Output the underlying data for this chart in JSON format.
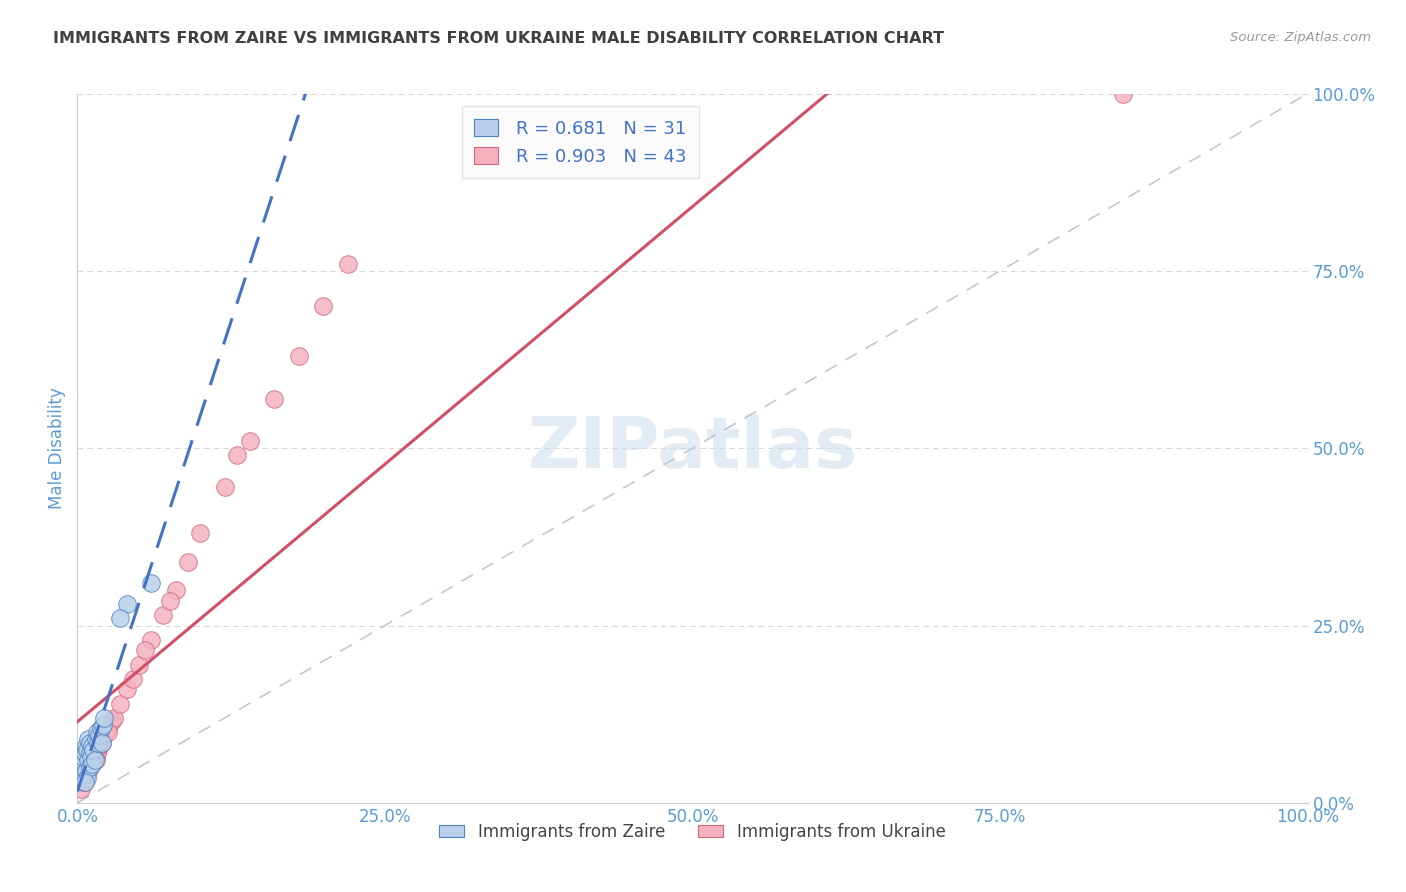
{
  "title": "IMMIGRANTS FROM ZAIRE VS IMMIGRANTS FROM UKRAINE MALE DISABILITY CORRELATION CHART",
  "source": "Source: ZipAtlas.com",
  "ylabel": "Male Disability",
  "xlim": [
    0,
    1.0
  ],
  "ylim": [
    0,
    1.0
  ],
  "xtick_labels": [
    "0.0%",
    "25.0%",
    "50.0%",
    "75.0%",
    "100.0%"
  ],
  "xtick_vals": [
    0.0,
    0.25,
    0.5,
    0.75,
    1.0
  ],
  "ytick_labels": [
    "0.0%",
    "25.0%",
    "50.0%",
    "75.0%",
    "100.0%"
  ],
  "ytick_vals": [
    0.0,
    0.25,
    0.5,
    0.75,
    1.0
  ],
  "zaire_face_color": "#b8d0ea",
  "ukraine_face_color": "#f5b0c0",
  "zaire_edge_color": "#5080c0",
  "ukraine_edge_color": "#d06878",
  "zaire_line_color": "#4472C4",
  "ukraine_line_color": "#d05068",
  "diagonal_color": "#c0c8d0",
  "R_zaire": 0.681,
  "N_zaire": 31,
  "R_ukraine": 0.903,
  "N_ukraine": 43,
  "watermark": "ZIPatlas",
  "background_color": "#ffffff",
  "title_color": "#404040",
  "axis_label_color": "#5b9bd5",
  "tick_color": "#5b9bd5",
  "rn_color": "#4472C4",
  "zaire_scatter_x": [
    0.003,
    0.004,
    0.005,
    0.005,
    0.006,
    0.007,
    0.007,
    0.008,
    0.008,
    0.009,
    0.009,
    0.01,
    0.01,
    0.01,
    0.011,
    0.012,
    0.012,
    0.013,
    0.014,
    0.015,
    0.016,
    0.017,
    0.018,
    0.019,
    0.02,
    0.021,
    0.022,
    0.006,
    0.04,
    0.06,
    0.035
  ],
  "zaire_scatter_y": [
    0.06,
    0.055,
    0.065,
    0.04,
    0.07,
    0.045,
    0.08,
    0.035,
    0.075,
    0.06,
    0.09,
    0.05,
    0.07,
    0.085,
    0.065,
    0.055,
    0.08,
    0.075,
    0.06,
    0.09,
    0.1,
    0.085,
    0.095,
    0.105,
    0.085,
    0.11,
    0.12,
    0.03,
    0.28,
    0.31,
    0.26
  ],
  "ukraine_scatter_x": [
    0.003,
    0.005,
    0.006,
    0.007,
    0.008,
    0.009,
    0.01,
    0.011,
    0.012,
    0.013,
    0.014,
    0.015,
    0.016,
    0.017,
    0.018,
    0.02,
    0.022,
    0.025,
    0.028,
    0.03,
    0.035,
    0.04,
    0.045,
    0.05,
    0.06,
    0.07,
    0.08,
    0.09,
    0.1,
    0.12,
    0.14,
    0.16,
    0.18,
    0.2,
    0.22,
    0.006,
    0.008,
    0.015,
    0.025,
    0.055,
    0.075,
    0.13,
    0.85
  ],
  "ukraine_scatter_y": [
    0.02,
    0.03,
    0.035,
    0.04,
    0.045,
    0.045,
    0.05,
    0.055,
    0.055,
    0.06,
    0.065,
    0.065,
    0.07,
    0.075,
    0.08,
    0.085,
    0.095,
    0.105,
    0.115,
    0.12,
    0.14,
    0.16,
    0.175,
    0.195,
    0.23,
    0.265,
    0.3,
    0.34,
    0.38,
    0.445,
    0.51,
    0.57,
    0.63,
    0.7,
    0.76,
    0.03,
    0.04,
    0.06,
    0.1,
    0.215,
    0.285,
    0.49,
    1.0
  ],
  "legend_box_color": "#fafafa",
  "legend_border_color": "#dddddd",
  "grid_color": "#d8d8d8",
  "scatter_size": 160
}
